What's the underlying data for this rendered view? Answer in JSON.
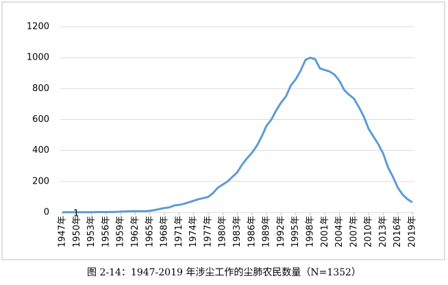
{
  "chart_data": {
    "type": "line",
    "title": "图 2-14：1947-2019 年涉尘工作的尘肺农民数量（N=1352）",
    "categories": [
      "1947年",
      null,
      null,
      "1950年",
      null,
      null,
      "1953年",
      null,
      null,
      "1956年",
      null,
      null,
      "1959年",
      null,
      null,
      "1962年",
      null,
      null,
      "1965年",
      null,
      null,
      "1968年",
      null,
      null,
      "1971年",
      null,
      null,
      "1974年",
      null,
      null,
      "1977年",
      null,
      null,
      "1980年",
      null,
      null,
      "1983年",
      null,
      null,
      "1986年",
      null,
      null,
      "1989年",
      null,
      null,
      "1992年",
      null,
      null,
      "1995年",
      null,
      null,
      "1998年",
      null,
      null,
      "2001年",
      null,
      null,
      "2004年",
      null,
      null,
      "2007年",
      null,
      null,
      "2010年",
      null,
      null,
      "2013年",
      null,
      null,
      "2016年",
      null,
      null,
      "2019年"
    ],
    "series": [
      {
        "color": "#5b9bd5",
        "values": [
          1,
          1,
          1,
          1,
          1,
          1,
          1,
          2,
          2,
          2,
          3,
          3,
          5,
          6,
          7,
          8,
          8,
          8,
          10,
          15,
          22,
          28,
          32,
          45,
          48,
          55,
          65,
          75,
          85,
          92,
          100,
          125,
          160,
          180,
          200,
          230,
          260,
          310,
          350,
          385,
          430,
          490,
          560,
          600,
          660,
          710,
          750,
          820,
          860,
          915,
          985,
          1000,
          990,
          930,
          920,
          910,
          890,
          850,
          790,
          760,
          735,
          680,
          620,
          540,
          490,
          440,
          380,
          290,
          230,
          160,
          115,
          85,
          65
        ],
        "value_labels": [
          "1",
          null,
          null,
          null,
          null,
          null,
          null,
          null,
          null,
          null,
          null,
          null,
          null,
          null,
          null,
          null,
          null,
          null,
          null,
          null,
          null,
          null,
          null,
          null,
          null,
          null,
          null,
          null,
          null,
          null,
          null,
          null,
          null,
          null,
          null,
          null,
          null,
          null,
          null,
          null,
          null,
          null,
          null,
          null,
          null,
          null,
          null,
          null,
          null,
          null,
          null,
          null,
          null,
          null,
          null,
          null,
          null,
          null,
          null,
          null,
          null,
          null,
          null,
          null,
          null,
          null,
          null,
          null,
          null,
          null,
          null,
          null,
          null
        ]
      }
    ],
    "ylim": [
      0,
      1200
    ],
    "yticks": [
      0,
      200,
      400,
      600,
      800,
      1000,
      1200
    ],
    "grid": true
  }
}
